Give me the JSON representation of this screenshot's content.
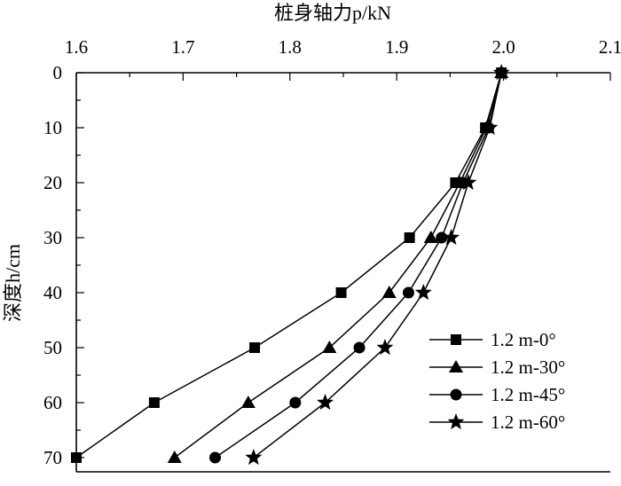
{
  "chart_data": {
    "type": "line",
    "xlabel": "桩身轴力p/kN",
    "ylabel": "深度h/cm",
    "xlim": [
      1.6,
      2.1
    ],
    "ylim": [
      0,
      70
    ],
    "x_ticks": [
      "1.6",
      "1.7",
      "1.8",
      "1.9",
      "2.0",
      "2.1"
    ],
    "y_ticks": [
      "0",
      "10",
      "20",
      "30",
      "40",
      "50",
      "60",
      "70"
    ],
    "x_axis_position": "top",
    "y_axis_inverted": true,
    "grid": false,
    "legend_position": "bottom-right",
    "depth": [
      0,
      10,
      20,
      30,
      40,
      50,
      60,
      70
    ],
    "series": [
      {
        "name": "1.2 m-0°",
        "marker": "square",
        "values": [
          1.998,
          1.983,
          1.955,
          1.912,
          1.848,
          1.767,
          1.673,
          1.6
        ]
      },
      {
        "name": "1.2 m-30°",
        "marker": "triangle",
        "values": [
          1.998,
          1.984,
          1.959,
          1.932,
          1.893,
          1.837,
          1.761,
          1.692
        ]
      },
      {
        "name": "1.2 m-45°",
        "marker": "circle",
        "values": [
          1.998,
          1.986,
          1.962,
          1.942,
          1.911,
          1.865,
          1.805,
          1.73
        ]
      },
      {
        "name": "1.2 m-60°",
        "marker": "star",
        "values": [
          1.998,
          1.987,
          1.967,
          1.951,
          1.925,
          1.889,
          1.833,
          1.766
        ]
      }
    ]
  }
}
